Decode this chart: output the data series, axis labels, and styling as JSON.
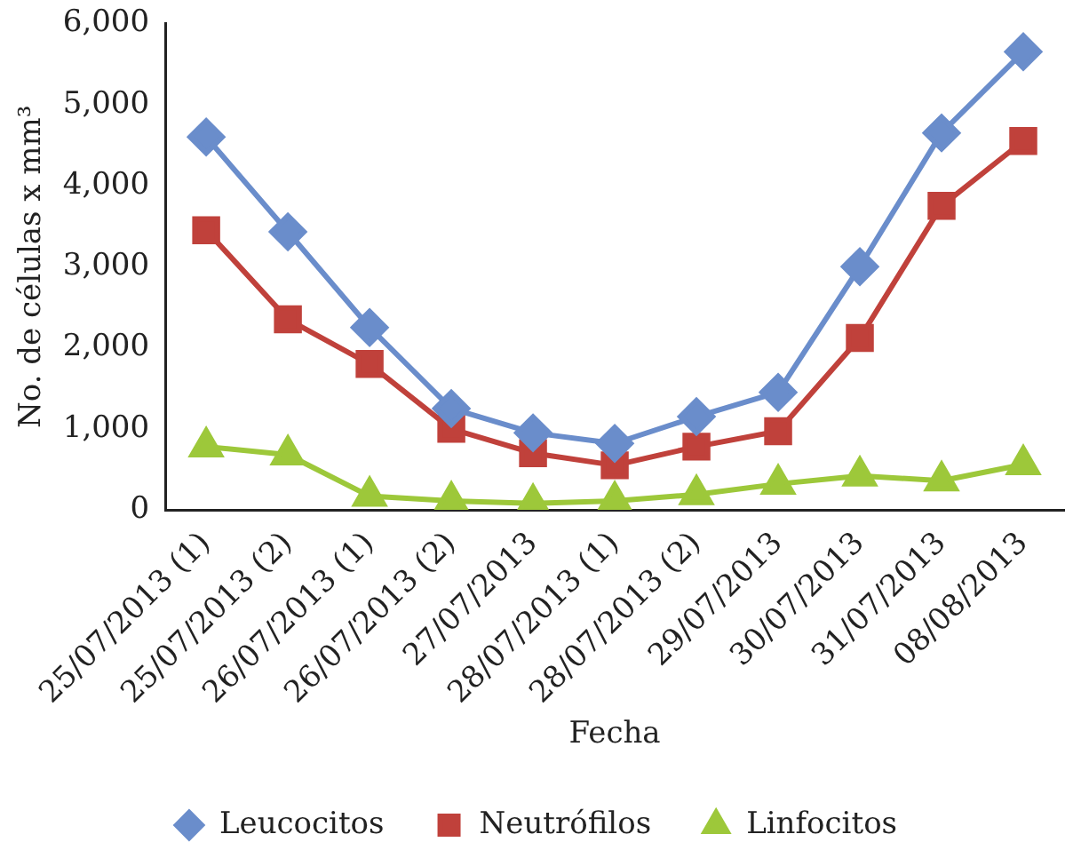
{
  "chart_data": {
    "type": "line",
    "xlabel": "Fecha",
    "ylabel": "No. de células x mm³",
    "categories": [
      "25/07/2013 (1)",
      "25/07/2013 (2)",
      "26/07/2013 (1)",
      "26/07/2013 (2)",
      "27/07/2013",
      "28/07/2013 (1)",
      "28/07/2013 (2)",
      "29/07/2013",
      "30/07/2013",
      "31/07/2013",
      "08/08/2013"
    ],
    "series": [
      {
        "name": "Leucocitos",
        "color": "#6a8dcb",
        "marker": "diamond",
        "values": [
          4600,
          3430,
          2250,
          1250,
          950,
          820,
          1150,
          1450,
          3000,
          4650,
          5650
        ]
      },
      {
        "name": "Neutrófilos",
        "color": "#c0413b",
        "marker": "square",
        "values": [
          3450,
          2350,
          1800,
          1000,
          700,
          550,
          780,
          970,
          2120,
          3750,
          4550
        ]
      },
      {
        "name": "Linfocitos",
        "color": "#9dc83a",
        "marker": "triangle",
        "values": [
          780,
          680,
          170,
          110,
          80,
          110,
          190,
          320,
          420,
          360,
          560
        ]
      }
    ],
    "ylim": [
      0,
      6000
    ],
    "yticks": [
      {
        "value": 0,
        "label": "0"
      },
      {
        "value": 1000,
        "label": "1,000"
      },
      {
        "value": 2000,
        "label": "2,000"
      },
      {
        "value": 3000,
        "label": "3,000"
      },
      {
        "value": 4000,
        "label": "4,000"
      },
      {
        "value": 5000,
        "label": "5,000"
      },
      {
        "value": 6000,
        "label": "6,000"
      }
    ],
    "grid": false,
    "legend": "bottom",
    "line_style": "solid"
  }
}
